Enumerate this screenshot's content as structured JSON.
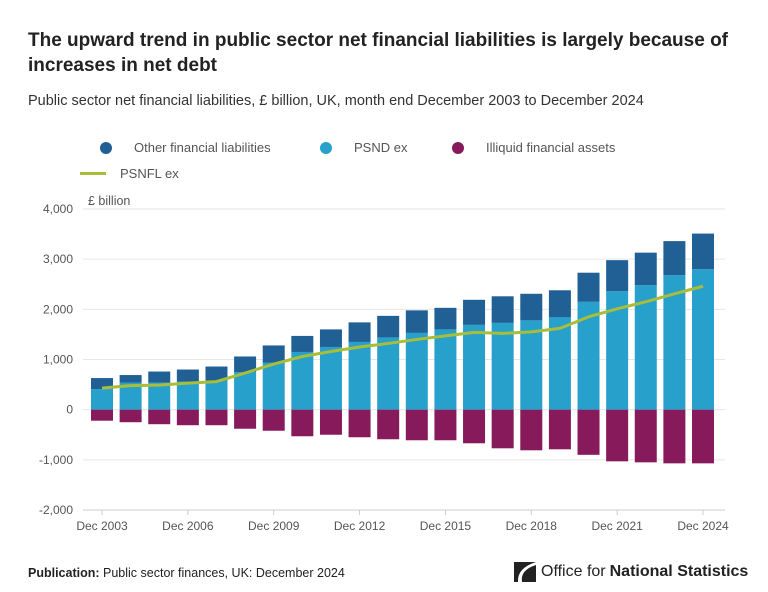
{
  "title": "The upward trend in public sector net financial liabilities is largely because of increases in net debt",
  "subtitle": "Public sector net financial liabilities, £ billion, UK, month end December 2003 to December 2024",
  "footer": {
    "label": "Publication:",
    "text": "Public sector finances, UK: December 2024"
  },
  "logo": {
    "text_light": "Office for",
    "text_bold": "National Statistics"
  },
  "colors": {
    "other": "#206095",
    "psnd": "#27a0cc",
    "illiquid": "#871a5b",
    "psnfl": "#a8bd3a"
  },
  "chart_data": {
    "type": "bar",
    "stacked": true,
    "ylabel": "£ billion",
    "ylim": [
      -2000,
      4000
    ],
    "yticks": [
      "-2,000",
      "-1,000",
      "0",
      "1,000",
      "2,000",
      "3,000",
      "4,000"
    ],
    "ytick_values": [
      -2000,
      -1000,
      0,
      1000,
      2000,
      3000,
      4000
    ],
    "grid": true,
    "legend_position": "top",
    "categories": [
      "Dec 2003",
      "Dec 2004",
      "Dec 2005",
      "Dec 2006",
      "Dec 2007",
      "Dec 2008",
      "Dec 2009",
      "Dec 2010",
      "Dec 2011",
      "Dec 2012",
      "Dec 2013",
      "Dec 2014",
      "Dec 2015",
      "Dec 2016",
      "Dec 2017",
      "Dec 2018",
      "Dec 2019",
      "Dec 2020",
      "Dec 2021",
      "Dec 2022",
      "Dec 2023",
      "Dec 2024"
    ],
    "xtick_labels": [
      "Dec 2003",
      "Dec 2006",
      "Dec 2009",
      "Dec 2012",
      "Dec 2015",
      "Dec 2018",
      "Dec 2021",
      "Dec 2024"
    ],
    "series": [
      {
        "name": "Other financial liabilities",
        "kind": "bar",
        "values": [
          220,
          150,
          220,
          240,
          280,
          310,
          340,
          320,
          350,
          390,
          430,
          450,
          430,
          500,
          530,
          530,
          540,
          580,
          620,
          650,
          680,
          710
        ]
      },
      {
        "name": "PSND ex",
        "kind": "bar",
        "values": [
          410,
          540,
          540,
          560,
          580,
          750,
          940,
          1150,
          1250,
          1350,
          1440,
          1530,
          1600,
          1690,
          1730,
          1780,
          1840,
          2150,
          2360,
          2480,
          2680,
          2800
        ]
      },
      {
        "name": "Illiquid financial assets",
        "kind": "bar",
        "values": [
          -220,
          -250,
          -290,
          -310,
          -310,
          -380,
          -420,
          -530,
          -500,
          -550,
          -590,
          -610,
          -610,
          -670,
          -770,
          -810,
          -790,
          -900,
          -1030,
          -1050,
          -1070,
          -1070
        ]
      },
      {
        "name": "PSNFL ex",
        "kind": "line",
        "values": [
          430,
          480,
          490,
          530,
          560,
          730,
          910,
          1060,
          1160,
          1250,
          1320,
          1400,
          1470,
          1540,
          1520,
          1550,
          1620,
          1850,
          2010,
          2150,
          2310,
          2460
        ]
      }
    ]
  }
}
